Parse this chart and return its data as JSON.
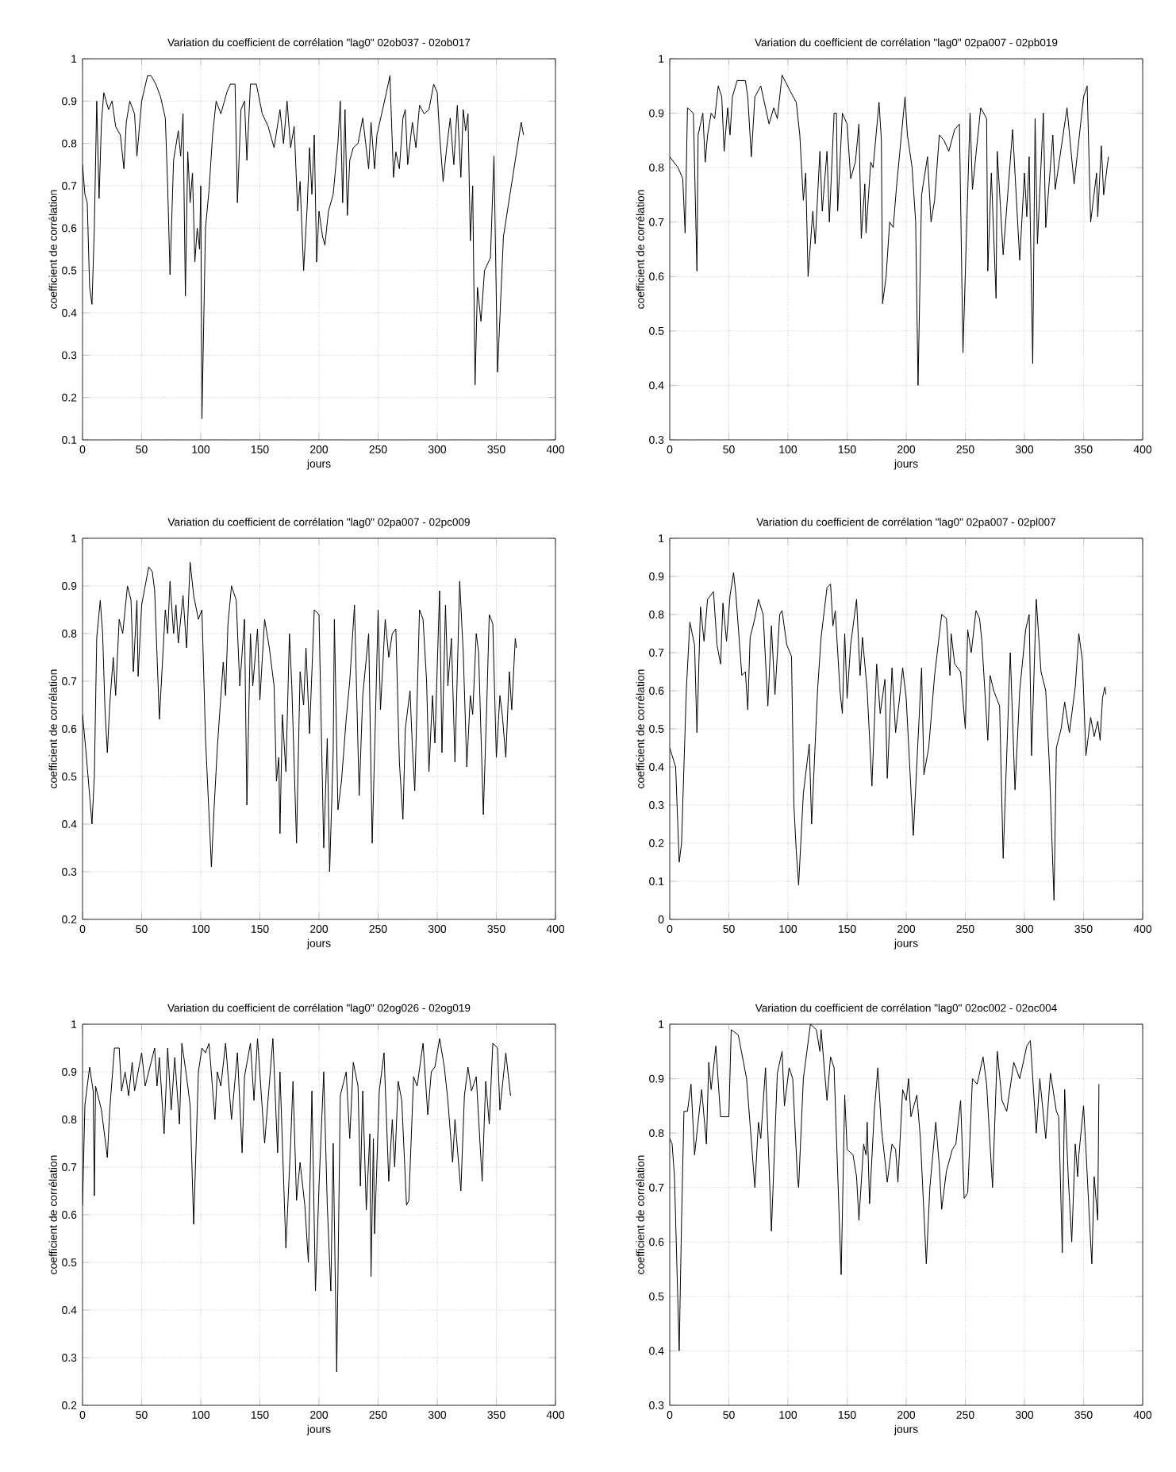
{
  "chart_data": [
    {
      "type": "line",
      "title": "Variation du coefficient de corrélation \"lag0\" 02ob037 - 02ob017",
      "xlabel": "jours",
      "ylabel": "coefficient de corrélation",
      "color": "#000000",
      "grid": true,
      "xlim": [
        0,
        400
      ],
      "ylim": [
        0.1,
        1
      ],
      "xticks": [
        0,
        50,
        100,
        150,
        200,
        250,
        300,
        350,
        400
      ],
      "yticks": [
        0.1,
        0.2,
        0.3,
        0.4,
        0.5,
        0.6,
        0.7,
        0.8,
        0.9,
        1
      ],
      "x": [
        0,
        2,
        4,
        6,
        8,
        10,
        12,
        14,
        16,
        18,
        22,
        25,
        28,
        32,
        35,
        37,
        40,
        44,
        46,
        50,
        55,
        58,
        62,
        66,
        70,
        72,
        74,
        77,
        81,
        83,
        85,
        87,
        89,
        91,
        93,
        95,
        97,
        99,
        100,
        101,
        104,
        107,
        110,
        113,
        117,
        122,
        125,
        129,
        131,
        134,
        137,
        139,
        142,
        147,
        152,
        157,
        162,
        167,
        170,
        173,
        176,
        179,
        182,
        184,
        187,
        190,
        192,
        194,
        196,
        198,
        200,
        203,
        205,
        208,
        212,
        216,
        218,
        220,
        222,
        224,
        226,
        229,
        233,
        237,
        242,
        244,
        247,
        249,
        253,
        257,
        260,
        263,
        265,
        268,
        271,
        273,
        275,
        279,
        282,
        285,
        289,
        293,
        297,
        300,
        302,
        305,
        308,
        311,
        314,
        317,
        320,
        322,
        324,
        326,
        328,
        330,
        332,
        334,
        337,
        340,
        345,
        348,
        351,
        356,
        366,
        371,
        373
      ],
      "values": [
        0.75,
        0.68,
        0.66,
        0.46,
        0.42,
        0.6,
        0.9,
        0.67,
        0.85,
        0.92,
        0.88,
        0.9,
        0.84,
        0.82,
        0.74,
        0.85,
        0.9,
        0.87,
        0.77,
        0.9,
        0.96,
        0.96,
        0.94,
        0.91,
        0.86,
        0.7,
        0.49,
        0.76,
        0.83,
        0.77,
        0.87,
        0.44,
        0.78,
        0.66,
        0.73,
        0.52,
        0.6,
        0.55,
        0.7,
        0.15,
        0.6,
        0.69,
        0.82,
        0.9,
        0.87,
        0.92,
        0.94,
        0.94,
        0.66,
        0.88,
        0.9,
        0.76,
        0.94,
        0.94,
        0.87,
        0.84,
        0.79,
        0.88,
        0.8,
        0.9,
        0.79,
        0.84,
        0.64,
        0.71,
        0.5,
        0.65,
        0.79,
        0.68,
        0.82,
        0.52,
        0.64,
        0.58,
        0.56,
        0.64,
        0.68,
        0.8,
        0.9,
        0.66,
        0.88,
        0.63,
        0.76,
        0.79,
        0.8,
        0.86,
        0.74,
        0.85,
        0.74,
        0.82,
        0.87,
        0.92,
        0.96,
        0.72,
        0.78,
        0.74,
        0.86,
        0.88,
        0.75,
        0.85,
        0.79,
        0.89,
        0.87,
        0.88,
        0.94,
        0.92,
        0.82,
        0.71,
        0.79,
        0.86,
        0.75,
        0.89,
        0.72,
        0.88,
        0.83,
        0.87,
        0.57,
        0.7,
        0.23,
        0.46,
        0.38,
        0.5,
        0.53,
        0.77,
        0.26,
        0.58,
        0.76,
        0.85,
        0.82
      ]
    },
    {
      "type": "line",
      "title": "Variation du coefficient de corrélation \"lag0\" 02pa007 - 02pb019",
      "xlabel": "jours",
      "ylabel": "coefficient de corrélation",
      "color": "#000000",
      "grid": true,
      "xlim": [
        0,
        400
      ],
      "ylim": [
        0.3,
        1
      ],
      "xticks": [
        0,
        50,
        100,
        150,
        200,
        250,
        300,
        350,
        400
      ],
      "yticks": [
        0.3,
        0.4,
        0.5,
        0.6,
        0.7,
        0.8,
        0.9,
        1
      ],
      "x": [
        0,
        7,
        11,
        13,
        15,
        20,
        23,
        24,
        28,
        30,
        32,
        35,
        38,
        41,
        44,
        46,
        49,
        51,
        53,
        57,
        64,
        66,
        69,
        72,
        77,
        84,
        88,
        91,
        95,
        102,
        107,
        110,
        113,
        115,
        117,
        121,
        123,
        127,
        129,
        133,
        135,
        139,
        141,
        142,
        146,
        150,
        153,
        157,
        160,
        162,
        165,
        166,
        170,
        172,
        177,
        179,
        180,
        183,
        186,
        189,
        192,
        199,
        201,
        205,
        208,
        210,
        213,
        218,
        221,
        224,
        228,
        232,
        236,
        241,
        245,
        248,
        254,
        256,
        263,
        268,
        269,
        272,
        276,
        277,
        282,
        290,
        296,
        300,
        302,
        304,
        307,
        309,
        311,
        316,
        318,
        324,
        326,
        336,
        342,
        350,
        353,
        356,
        361,
        362,
        365,
        367,
        371
      ],
      "values": [
        0.82,
        0.8,
        0.78,
        0.68,
        0.91,
        0.9,
        0.61,
        0.86,
        0.9,
        0.81,
        0.86,
        0.9,
        0.89,
        0.95,
        0.93,
        0.83,
        0.91,
        0.86,
        0.93,
        0.96,
        0.96,
        0.93,
        0.82,
        0.93,
        0.95,
        0.88,
        0.91,
        0.89,
        0.97,
        0.94,
        0.92,
        0.86,
        0.74,
        0.79,
        0.6,
        0.72,
        0.66,
        0.83,
        0.72,
        0.83,
        0.7,
        0.9,
        0.9,
        0.72,
        0.9,
        0.88,
        0.78,
        0.81,
        0.88,
        0.67,
        0.77,
        0.68,
        0.81,
        0.8,
        0.92,
        0.85,
        0.55,
        0.6,
        0.7,
        0.69,
        0.77,
        0.93,
        0.86,
        0.8,
        0.7,
        0.4,
        0.75,
        0.82,
        0.7,
        0.74,
        0.86,
        0.85,
        0.83,
        0.87,
        0.88,
        0.46,
        0.9,
        0.76,
        0.91,
        0.89,
        0.61,
        0.79,
        0.56,
        0.83,
        0.64,
        0.87,
        0.63,
        0.79,
        0.71,
        0.82,
        0.44,
        0.89,
        0.66,
        0.9,
        0.69,
        0.86,
        0.76,
        0.91,
        0.77,
        0.93,
        0.95,
        0.7,
        0.79,
        0.71,
        0.84,
        0.75,
        0.82
      ]
    },
    {
      "type": "line",
      "title": "Variation du coefficient de corrélation \"lag0\" 02pa007 - 02pc009",
      "xlabel": "jours",
      "ylabel": "coefficient de corrélation",
      "color": "#000000",
      "grid": true,
      "xlim": [
        0,
        400
      ],
      "ylim": [
        0.2,
        1
      ],
      "xticks": [
        0,
        50,
        100,
        150,
        200,
        250,
        300,
        350,
        400
      ],
      "yticks": [
        0.2,
        0.3,
        0.4,
        0.5,
        0.6,
        0.7,
        0.8,
        0.9,
        1
      ],
      "x": [
        0,
        3,
        8,
        10,
        12,
        15,
        17,
        19,
        21,
        23,
        26,
        28,
        31,
        34,
        38,
        41,
        43,
        46,
        47,
        50,
        56,
        59,
        61,
        65,
        70,
        72,
        74,
        77,
        79,
        81,
        85,
        88,
        91,
        94,
        98,
        101,
        104,
        107,
        109,
        111,
        114,
        119,
        121,
        123,
        126,
        130,
        133,
        135,
        137,
        139,
        142,
        144,
        148,
        150,
        154,
        158,
        162,
        164,
        166,
        167,
        169,
        172,
        175,
        177,
        181,
        184,
        187,
        189,
        192,
        196,
        200,
        204,
        207,
        209,
        212,
        213,
        216,
        219,
        223,
        226,
        230,
        234,
        237,
        242,
        245,
        247,
        250,
        252,
        256,
        259,
        262,
        265,
        268,
        271,
        273,
        277,
        279,
        281,
        285,
        288,
        291,
        293,
        296,
        298,
        302,
        304,
        307,
        309,
        312,
        315,
        319,
        322,
        325,
        328,
        330,
        333,
        335,
        339,
        342,
        344,
        347,
        350,
        353,
        355,
        358,
        361,
        363,
        366,
        367
      ],
      "values": [
        0.63,
        0.55,
        0.4,
        0.5,
        0.79,
        0.87,
        0.8,
        0.64,
        0.55,
        0.65,
        0.75,
        0.67,
        0.83,
        0.8,
        0.9,
        0.87,
        0.72,
        0.87,
        0.71,
        0.86,
        0.94,
        0.93,
        0.89,
        0.62,
        0.85,
        0.8,
        0.91,
        0.8,
        0.86,
        0.78,
        0.88,
        0.77,
        0.95,
        0.88,
        0.83,
        0.85,
        0.58,
        0.42,
        0.31,
        0.42,
        0.56,
        0.74,
        0.67,
        0.82,
        0.9,
        0.87,
        0.69,
        0.76,
        0.83,
        0.44,
        0.8,
        0.69,
        0.81,
        0.66,
        0.83,
        0.77,
        0.69,
        0.49,
        0.54,
        0.38,
        0.63,
        0.51,
        0.8,
        0.69,
        0.36,
        0.72,
        0.65,
        0.77,
        0.59,
        0.85,
        0.84,
        0.35,
        0.58,
        0.3,
        0.55,
        0.83,
        0.43,
        0.49,
        0.62,
        0.7,
        0.86,
        0.46,
        0.67,
        0.8,
        0.36,
        0.55,
        0.85,
        0.64,
        0.83,
        0.75,
        0.8,
        0.81,
        0.53,
        0.41,
        0.6,
        0.68,
        0.56,
        0.47,
        0.85,
        0.83,
        0.7,
        0.51,
        0.67,
        0.57,
        0.89,
        0.55,
        0.86,
        0.69,
        0.79,
        0.53,
        0.91,
        0.76,
        0.52,
        0.67,
        0.63,
        0.8,
        0.76,
        0.42,
        0.66,
        0.84,
        0.82,
        0.54,
        0.67,
        0.63,
        0.54,
        0.72,
        0.64,
        0.79,
        0.77
      ]
    },
    {
      "type": "line",
      "title": "Variation du coefficient de corrélation \"lag0\" 02pa007 - 02pl007",
      "xlabel": "jours",
      "ylabel": "coefficient de corrélation",
      "color": "#000000",
      "grid": true,
      "xlim": [
        0,
        400
      ],
      "ylim": [
        0,
        1
      ],
      "xticks": [
        0,
        50,
        100,
        150,
        200,
        250,
        300,
        350,
        400
      ],
      "yticks": [
        0,
        0.1,
        0.2,
        0.3,
        0.4,
        0.5,
        0.6,
        0.7,
        0.8,
        0.9,
        1
      ],
      "x": [
        0,
        5,
        8,
        10,
        14,
        17,
        19,
        21,
        23,
        26,
        29,
        32,
        37,
        40,
        43,
        45,
        48,
        51,
        54,
        56,
        61,
        64,
        66,
        68,
        72,
        75,
        79,
        83,
        86,
        89,
        93,
        95,
        99,
        103,
        105,
        107,
        109,
        113,
        118,
        120,
        125,
        128,
        133,
        136,
        138,
        140,
        144,
        146,
        148,
        150,
        153,
        158,
        161,
        163,
        167,
        171,
        175,
        178,
        182,
        184,
        188,
        191,
        194,
        197,
        200,
        206,
        213,
        215,
        219,
        224,
        230,
        234,
        237,
        238,
        241,
        246,
        250,
        252,
        255,
        259,
        262,
        264,
        269,
        271,
        274,
        279,
        282,
        288,
        292,
        296,
        301,
        304,
        306,
        310,
        314,
        318,
        321,
        325,
        327,
        331,
        334,
        338,
        343,
        346,
        349,
        352,
        356,
        359,
        362,
        364,
        366,
        368,
        369
      ],
      "values": [
        0.45,
        0.4,
        0.15,
        0.2,
        0.6,
        0.78,
        0.75,
        0.72,
        0.49,
        0.82,
        0.73,
        0.84,
        0.86,
        0.72,
        0.67,
        0.83,
        0.73,
        0.85,
        0.91,
        0.85,
        0.64,
        0.65,
        0.55,
        0.74,
        0.79,
        0.84,
        0.8,
        0.56,
        0.77,
        0.59,
        0.8,
        0.81,
        0.72,
        0.69,
        0.3,
        0.18,
        0.09,
        0.33,
        0.46,
        0.25,
        0.6,
        0.74,
        0.87,
        0.88,
        0.77,
        0.81,
        0.6,
        0.54,
        0.75,
        0.58,
        0.72,
        0.84,
        0.64,
        0.74,
        0.6,
        0.35,
        0.67,
        0.54,
        0.63,
        0.37,
        0.66,
        0.49,
        0.57,
        0.66,
        0.58,
        0.22,
        0.66,
        0.38,
        0.45,
        0.64,
        0.8,
        0.79,
        0.64,
        0.75,
        0.67,
        0.65,
        0.5,
        0.76,
        0.7,
        0.81,
        0.79,
        0.73,
        0.47,
        0.64,
        0.6,
        0.56,
        0.16,
        0.7,
        0.34,
        0.6,
        0.76,
        0.8,
        0.43,
        0.84,
        0.65,
        0.6,
        0.41,
        0.05,
        0.45,
        0.5,
        0.57,
        0.49,
        0.61,
        0.75,
        0.68,
        0.43,
        0.53,
        0.48,
        0.52,
        0.47,
        0.58,
        0.61,
        0.59
      ]
    },
    {
      "type": "line",
      "title": "Variation du coefficient de corrélation \"lag0\" 02og026 - 02og019",
      "xlabel": "jours",
      "ylabel": "coefficient de corrélation",
      "color": "#000000",
      "grid": true,
      "xlim": [
        0,
        400
      ],
      "ylim": [
        0.2,
        1
      ],
      "xticks": [
        0,
        50,
        100,
        150,
        200,
        250,
        300,
        350,
        400
      ],
      "yticks": [
        0.2,
        0.3,
        0.4,
        0.5,
        0.6,
        0.7,
        0.8,
        0.9,
        1
      ],
      "x": [
        0,
        2,
        6,
        9,
        10,
        11,
        16,
        21,
        23,
        27,
        31,
        33,
        36,
        39,
        42,
        44,
        50,
        53,
        56,
        61,
        63,
        65,
        69,
        72,
        75,
        78,
        82,
        84,
        88,
        91,
        94,
        98,
        101,
        104,
        107,
        112,
        114,
        117,
        121,
        126,
        131,
        135,
        137,
        142,
        145,
        148,
        154,
        161,
        165,
        167,
        172,
        176,
        178,
        181,
        184,
        188,
        191,
        194,
        197,
        200,
        204,
        207,
        210,
        212,
        215,
        218,
        223,
        226,
        229,
        233,
        235,
        237,
        240,
        243,
        244,
        246,
        247,
        251,
        255,
        259,
        262,
        264,
        267,
        270,
        274,
        276,
        280,
        283,
        288,
        292,
        295,
        298,
        302,
        306,
        309,
        313,
        315,
        320,
        323,
        326,
        329,
        333,
        338,
        341,
        344,
        347,
        351,
        353,
        358,
        362
      ],
      "values": [
        0.62,
        0.83,
        0.91,
        0.86,
        0.64,
        0.87,
        0.82,
        0.72,
        0.82,
        0.95,
        0.95,
        0.86,
        0.9,
        0.85,
        0.92,
        0.86,
        0.94,
        0.87,
        0.9,
        0.95,
        0.87,
        0.93,
        0.77,
        0.95,
        0.82,
        0.93,
        0.79,
        0.96,
        0.89,
        0.83,
        0.58,
        0.9,
        0.95,
        0.94,
        0.96,
        0.8,
        0.9,
        0.87,
        0.96,
        0.8,
        0.94,
        0.73,
        0.89,
        0.96,
        0.84,
        0.97,
        0.75,
        0.97,
        0.73,
        0.9,
        0.53,
        0.75,
        0.88,
        0.63,
        0.71,
        0.62,
        0.5,
        0.86,
        0.44,
        0.66,
        0.9,
        0.62,
        0.44,
        0.75,
        0.27,
        0.85,
        0.9,
        0.76,
        0.92,
        0.87,
        0.66,
        0.86,
        0.61,
        0.77,
        0.47,
        0.76,
        0.56,
        0.86,
        0.94,
        0.67,
        0.8,
        0.7,
        0.88,
        0.84,
        0.62,
        0.63,
        0.89,
        0.87,
        0.96,
        0.81,
        0.9,
        0.91,
        0.97,
        0.91,
        0.84,
        0.71,
        0.8,
        0.65,
        0.85,
        0.91,
        0.86,
        0.89,
        0.67,
        0.88,
        0.79,
        0.96,
        0.95,
        0.82,
        0.94,
        0.85
      ]
    },
    {
      "type": "line",
      "title": "Variation du coefficient de corrélation \"lag0\" 02oc002 - 02oc004",
      "xlabel": "jours",
      "ylabel": "coefficient de corrélation",
      "color": "#000000",
      "grid": true,
      "xlim": [
        0,
        400
      ],
      "ylim": [
        0.3,
        1
      ],
      "xticks": [
        0,
        50,
        100,
        150,
        200,
        250,
        300,
        350,
        400
      ],
      "yticks": [
        0.3,
        0.4,
        0.5,
        0.6,
        0.7,
        0.8,
        0.9,
        1
      ],
      "x": [
        0,
        2,
        4,
        8,
        10,
        12,
        15,
        18,
        21,
        27,
        31,
        33,
        35,
        39,
        43,
        50,
        52,
        58,
        65,
        72,
        75,
        77,
        81,
        86,
        91,
        95,
        97,
        101,
        104,
        108,
        109,
        113,
        119,
        124,
        127,
        128,
        133,
        136,
        139,
        145,
        148,
        150,
        155,
        158,
        160,
        164,
        166,
        167,
        169,
        173,
        176,
        179,
        184,
        188,
        191,
        193,
        197,
        200,
        202,
        204,
        209,
        212,
        217,
        220,
        225,
        228,
        230,
        234,
        239,
        242,
        246,
        249,
        252,
        256,
        260,
        265,
        268,
        273,
        277,
        281,
        285,
        291,
        296,
        302,
        305,
        310,
        313,
        318,
        322,
        327,
        329,
        332,
        334,
        337,
        340,
        343,
        345,
        346,
        350,
        352,
        355,
        357,
        359,
        362,
        363
      ],
      "values": [
        0.79,
        0.78,
        0.72,
        0.4,
        0.64,
        0.84,
        0.84,
        0.89,
        0.76,
        0.88,
        0.78,
        0.93,
        0.88,
        0.96,
        0.83,
        0.83,
        0.99,
        0.98,
        0.9,
        0.7,
        0.82,
        0.79,
        0.92,
        0.62,
        0.91,
        0.95,
        0.85,
        0.92,
        0.9,
        0.72,
        0.7,
        0.9,
        1.0,
        0.99,
        0.95,
        0.99,
        0.86,
        0.94,
        0.92,
        0.54,
        0.87,
        0.77,
        0.76,
        0.72,
        0.64,
        0.78,
        0.76,
        0.82,
        0.67,
        0.84,
        0.92,
        0.81,
        0.71,
        0.78,
        0.77,
        0.71,
        0.88,
        0.86,
        0.9,
        0.83,
        0.87,
        0.79,
        0.56,
        0.7,
        0.82,
        0.74,
        0.66,
        0.73,
        0.77,
        0.78,
        0.86,
        0.68,
        0.69,
        0.9,
        0.89,
        0.94,
        0.89,
        0.7,
        0.95,
        0.86,
        0.84,
        0.93,
        0.9,
        0.96,
        0.97,
        0.8,
        0.9,
        0.79,
        0.91,
        0.84,
        0.83,
        0.58,
        0.88,
        0.72,
        0.6,
        0.78,
        0.72,
        0.76,
        0.85,
        0.77,
        0.64,
        0.56,
        0.72,
        0.64,
        0.89
      ]
    }
  ]
}
